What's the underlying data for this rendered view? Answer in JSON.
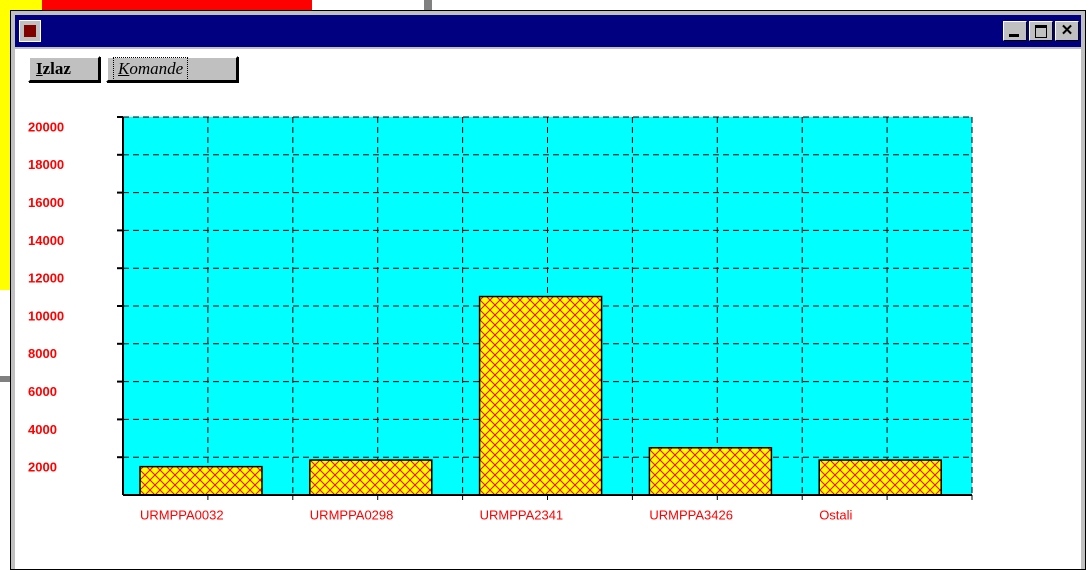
{
  "window": {
    "buttons": [
      "Izlaz",
      "Komande"
    ]
  },
  "chart_data": {
    "type": "bar",
    "categories": [
      "URMPPA0032",
      "URMPPA0298",
      "URMPPA2341",
      "URMPPA3426",
      "Ostali"
    ],
    "values": [
      1500,
      1850,
      10500,
      2500,
      1850
    ],
    "color": "#ffff00",
    "hatch_color": "#ff0000",
    "plot_background": "#00ffff",
    "label_color": "#ff0000",
    "ylim": [
      0,
      20000
    ],
    "yticks": [
      2000,
      4000,
      6000,
      8000,
      10000,
      12000,
      14000,
      16000,
      18000,
      20000
    ],
    "grid": true
  }
}
